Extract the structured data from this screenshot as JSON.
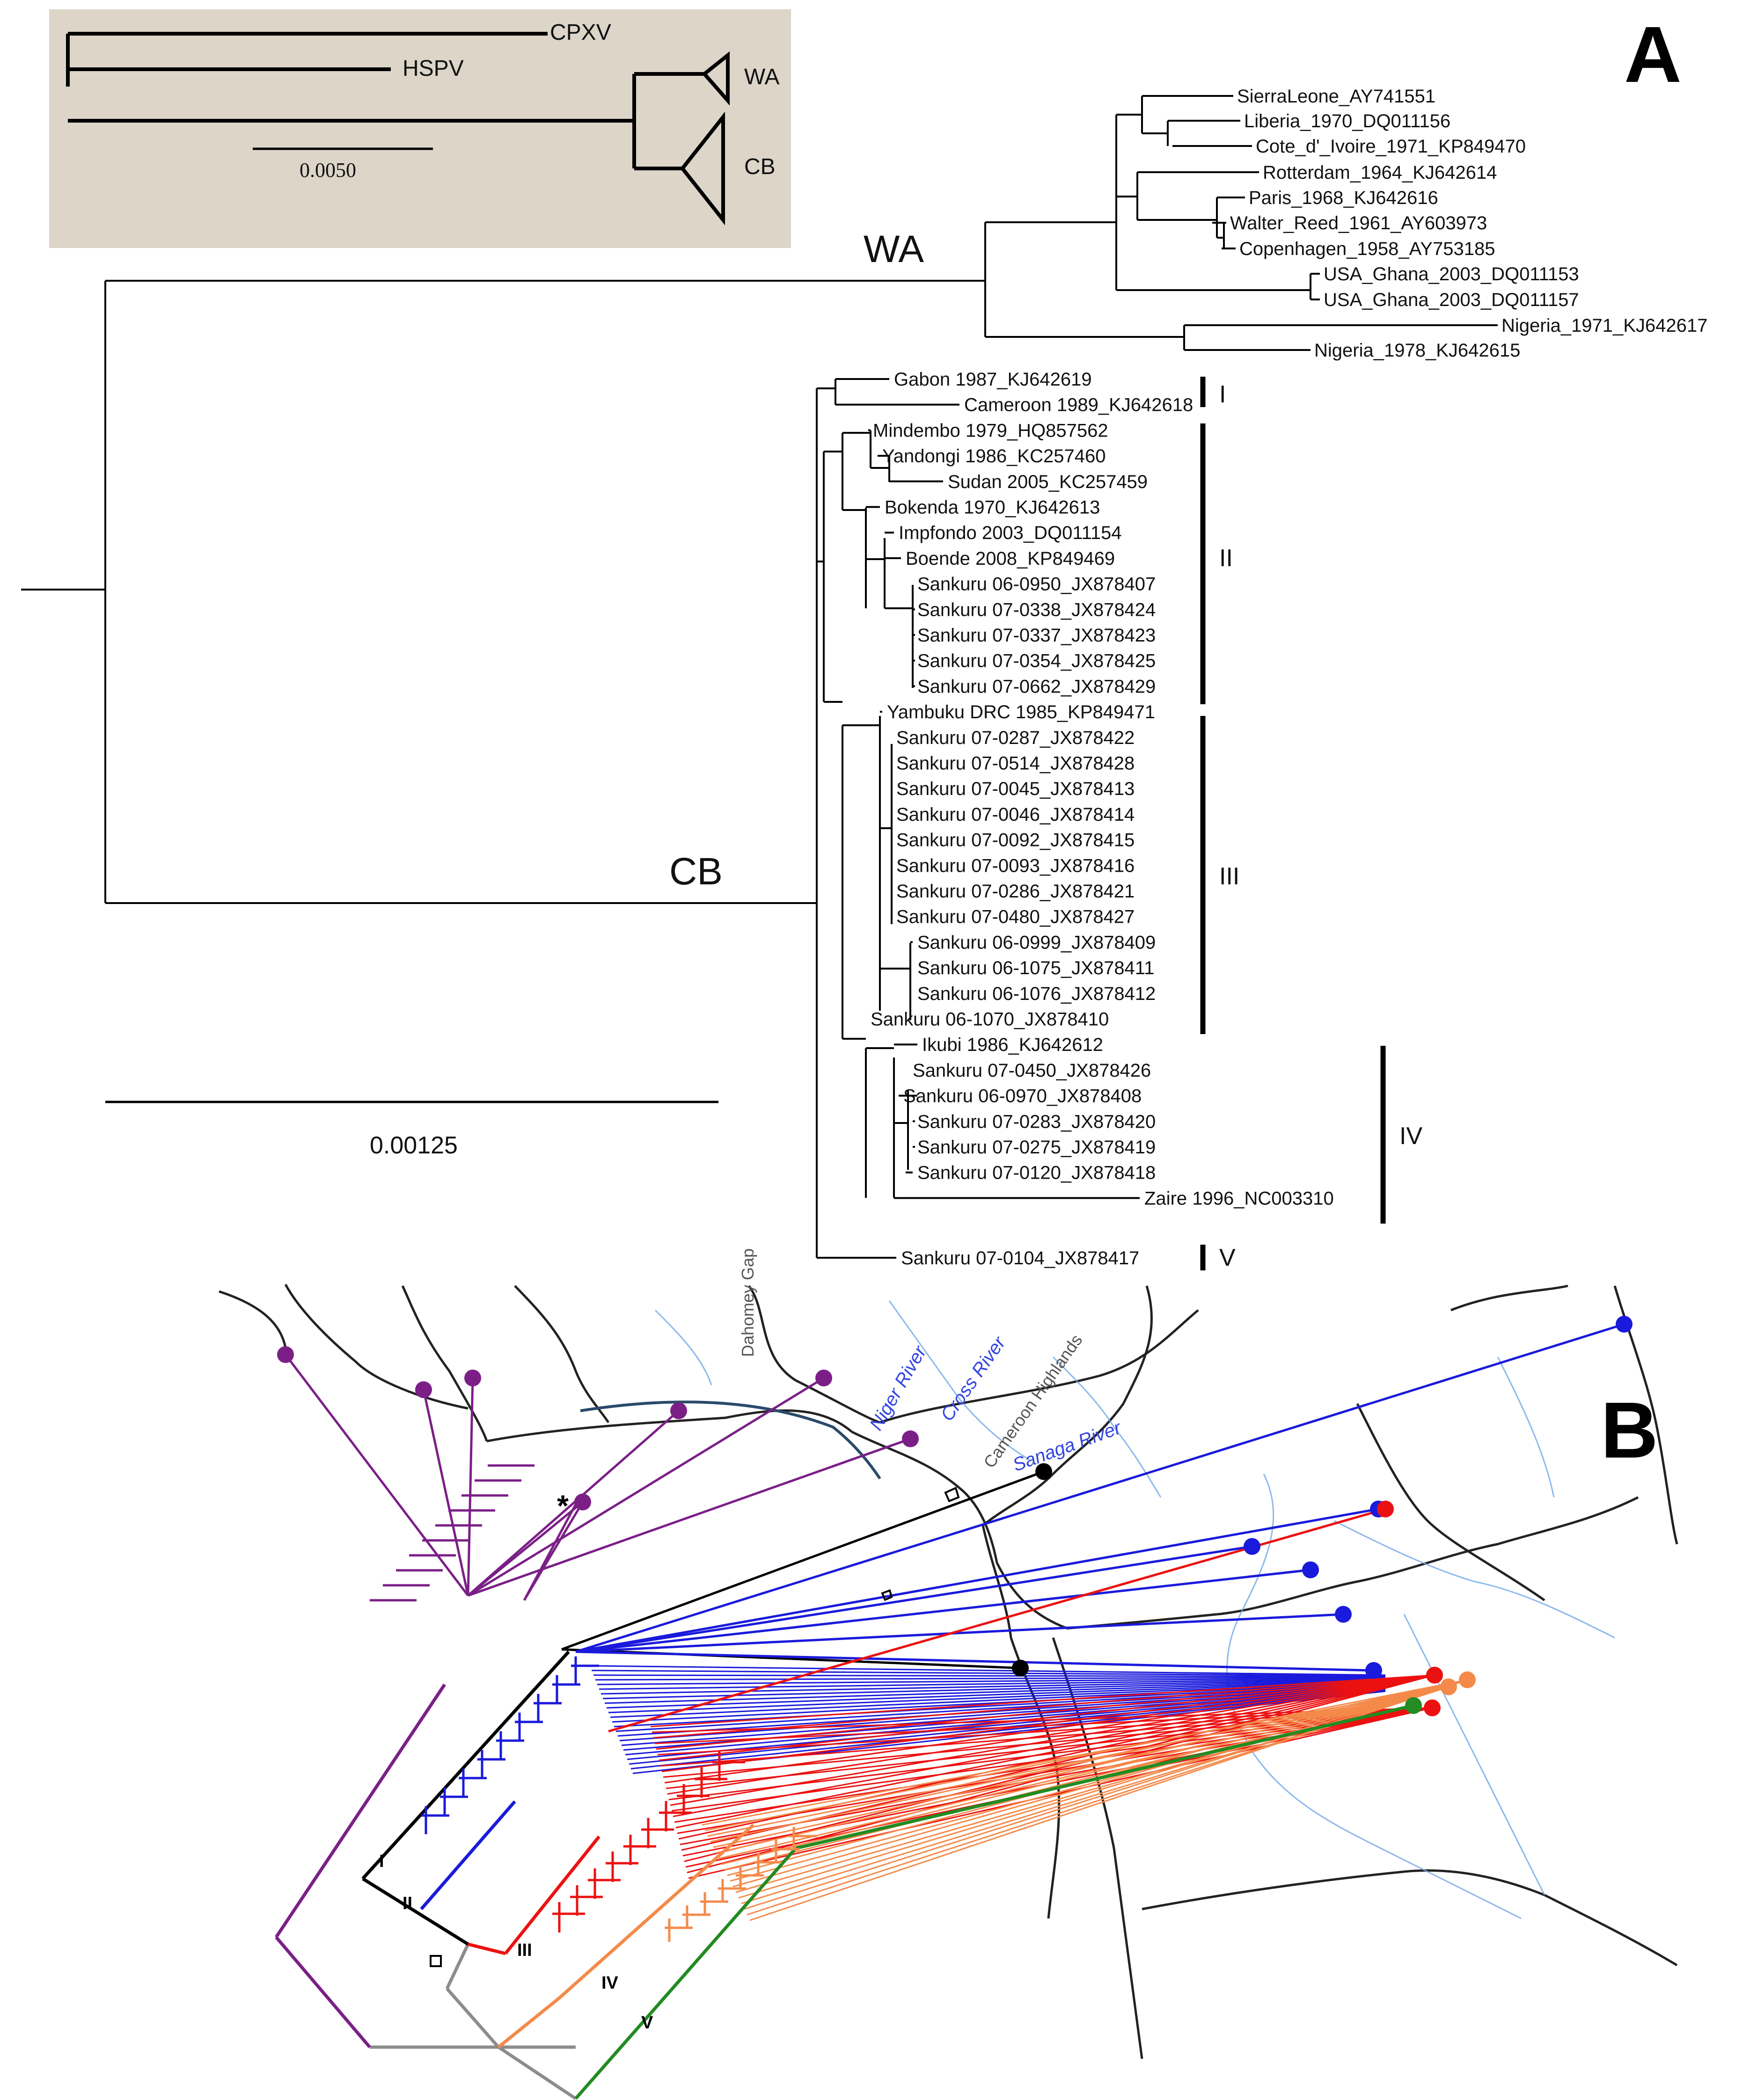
{
  "panel_a": {
    "letter": "A",
    "clade_wa": "WA",
    "clade_cb": "CB",
    "scale": "0.00125",
    "inset": {
      "cpxv": "CPXV",
      "hspv": "HSPV",
      "wa": "WA",
      "cb": "CB",
      "scale": "0.0050"
    },
    "wa_taxa": [
      "SierraLeone_AY741551",
      "Liberia_1970_DQ011156",
      "Cote_d'_Ivoire_1971_KP849470",
      "Rotterdam_1964_KJ642614",
      "Paris_1968_KJ642616",
      "Walter_Reed_1961_AY603973",
      "Copenhagen_1958_AY753185",
      "USA_Ghana_2003_DQ011153",
      "USA_Ghana_2003_DQ011157",
      "Nigeria_1971_KJ642617",
      "Nigeria_1978_KJ642615"
    ],
    "cb_taxa": [
      "Gabon 1987_KJ642619",
      "Cameroon 1989_KJ642618",
      "Mindembo 1979_HQ857562",
      "Yandongi 1986_KC257460",
      "Sudan 2005_KC257459",
      "Bokenda 1970_KJ642613",
      "Impfondo 2003_DQ011154",
      "Boende 2008_KP849469",
      "Sankuru 06-0950_JX878407",
      "Sankuru 07-0338_JX878424",
      "Sankuru 07-0337_JX878423",
      "Sankuru 07-0354_JX878425",
      "Sankuru 07-0662_JX878429",
      "Yambuku DRC 1985_KP849471",
      "Sankuru 07-0287_JX878422",
      "Sankuru 07-0514_JX878428",
      "Sankuru 07-0045_JX878413",
      "Sankuru 07-0046_JX878414",
      "Sankuru 07-0092_JX878415",
      "Sankuru 07-0093_JX878416",
      "Sankuru 07-0286_JX878421",
      "Sankuru 07-0480_JX878427",
      "Sankuru 06-0999_JX878409",
      "Sankuru 06-1075_JX878411",
      "Sankuru 06-1076_JX878412",
      "Sankuru 06-1070_JX878410",
      "Ikubi 1986_KJ642612",
      "Sankuru 07-0450_JX878426",
      "Sankuru 06-0970_JX878408",
      "Sankuru 07-0283_JX878420",
      "Sankuru 07-0275_JX878419",
      "Sankuru 07-0120_JX878418",
      "Zaire 1996_NC003310",
      "Sankuru 07-0104_JX878417"
    ],
    "cb_groups": [
      "I",
      "II",
      "III",
      "IV",
      "V"
    ]
  },
  "panel_b": {
    "letter": "B",
    "labels": {
      "dahomey": "Dahomey Gap",
      "niger": "Niger River",
      "cross": "Cross River",
      "cameroon": "Cameroon Highlands",
      "sanaga": "Sanaga River",
      "star": "*",
      "g1": "I",
      "g2": "II",
      "g3": "III",
      "g4": "IV",
      "g5": "V"
    },
    "colors": {
      "group1": "#7b1f87",
      "group2": "#1a1adc",
      "group3": "#ec1111",
      "group4": "#f48a4a",
      "group5": "#228b22",
      "ancestral": "#8c8c8c",
      "outgroup": "#000000"
    }
  }
}
